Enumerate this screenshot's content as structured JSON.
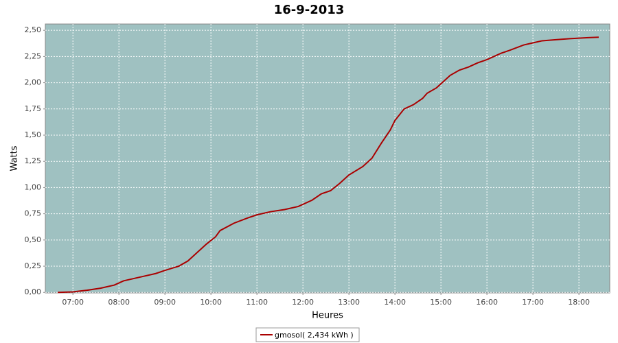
{
  "chart_data": {
    "type": "line",
    "title": "16-9-2013",
    "x_label": "Heures",
    "y_label": "Watts",
    "xlim": [
      6.4,
      18.67
    ],
    "ylim": [
      -0.005,
      2.56
    ],
    "grid": true,
    "background": "#9fc1c1",
    "xticks": [
      {
        "value": 7,
        "label": "07:00"
      },
      {
        "value": 8,
        "label": "08:00"
      },
      {
        "value": 9,
        "label": "09:00"
      },
      {
        "value": 10,
        "label": "10:00"
      },
      {
        "value": 11,
        "label": "11:00"
      },
      {
        "value": 12,
        "label": "12:00"
      },
      {
        "value": 13,
        "label": "13:00"
      },
      {
        "value": 14,
        "label": "14:00"
      },
      {
        "value": 15,
        "label": "15:00"
      },
      {
        "value": 16,
        "label": "16:00"
      },
      {
        "value": 17,
        "label": "17:00"
      },
      {
        "value": 18,
        "label": "18:00"
      }
    ],
    "yticks": [
      {
        "value": 0,
        "label": "0,00"
      },
      {
        "value": 0.25,
        "label": "0,25"
      },
      {
        "value": 0.5,
        "label": "0,50"
      },
      {
        "value": 0.75,
        "label": "0,75"
      },
      {
        "value": 1,
        "label": "1,00"
      },
      {
        "value": 1.25,
        "label": "1,25"
      },
      {
        "value": 1.5,
        "label": "1,50"
      },
      {
        "value": 1.75,
        "label": "1,75"
      },
      {
        "value": 2,
        "label": "2,00"
      },
      {
        "value": 2.25,
        "label": "2,25"
      },
      {
        "value": 2.5,
        "label": "2,50"
      }
    ],
    "x": [
      6.67,
      7.0,
      7.3,
      7.6,
      7.9,
      8.1,
      8.5,
      8.8,
      9.0,
      9.3,
      9.5,
      9.7,
      9.9,
      10.1,
      10.2,
      10.5,
      10.8,
      11.0,
      11.3,
      11.6,
      11.9,
      12.2,
      12.4,
      12.6,
      12.8,
      13.0,
      13.3,
      13.5,
      13.7,
      13.9,
      14.0,
      14.2,
      14.4,
      14.6,
      14.7,
      14.9,
      15.0,
      15.2,
      15.4,
      15.6,
      15.8,
      16.0,
      16.3,
      16.5,
      16.8,
      17.0,
      17.2,
      17.5,
      17.8,
      18.2,
      18.43
    ],
    "series": [
      {
        "name": "gmosol( 2,434 kWh )",
        "color": "#aa0000",
        "values": [
          0,
          0.005,
          0.02,
          0.04,
          0.07,
          0.11,
          0.15,
          0.18,
          0.21,
          0.25,
          0.3,
          0.38,
          0.46,
          0.53,
          0.59,
          0.66,
          0.71,
          0.74,
          0.77,
          0.79,
          0.82,
          0.88,
          0.94,
          0.97,
          1.04,
          1.12,
          1.2,
          1.28,
          1.42,
          1.55,
          1.64,
          1.75,
          1.79,
          1.85,
          1.9,
          1.95,
          1.99,
          2.07,
          2.12,
          2.15,
          2.19,
          2.22,
          2.28,
          2.31,
          2.36,
          2.38,
          2.4,
          2.41,
          2.42,
          2.43,
          2.434
        ]
      }
    ]
  }
}
